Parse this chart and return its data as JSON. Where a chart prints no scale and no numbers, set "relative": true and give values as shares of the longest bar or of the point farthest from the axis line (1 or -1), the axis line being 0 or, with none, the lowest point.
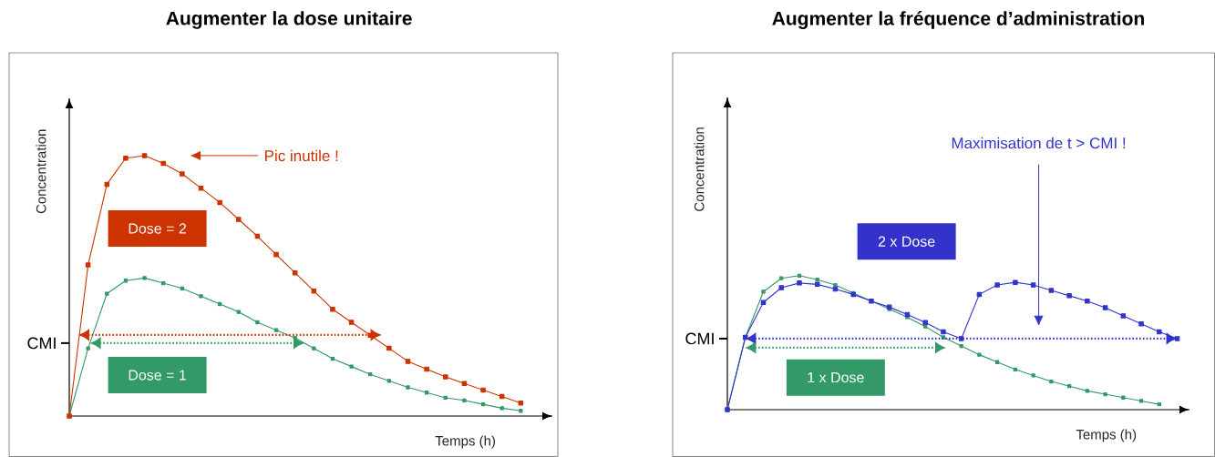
{
  "chart_data": [
    {
      "type": "line",
      "title": "Augmenter la dose unitaire",
      "xlabel": "Temps (h)",
      "ylabel": "Concentration",
      "relative": true,
      "marker": "square",
      "legend": false,
      "categories": [
        null,
        null,
        null,
        null,
        null,
        null,
        null,
        null,
        null,
        null,
        null,
        null,
        null,
        null,
        null,
        null,
        null,
        null,
        null,
        null,
        null,
        null,
        null,
        null,
        null
      ],
      "series": [
        {
          "name": "Dose = 2",
          "color": "#cc3300",
          "values": [
            0,
            0.58,
            0.89,
            0.99,
            1.0,
            0.97,
            0.93,
            0.875,
            0.82,
            0.755,
            0.69,
            0.62,
            0.55,
            0.48,
            0.41,
            0.36,
            0.31,
            0.26,
            0.21,
            0.18,
            0.15,
            0.125,
            0.1,
            0.075,
            0.05
          ]
        },
        {
          "name": "Dose = 1",
          "color": "#339966",
          "values": [
            0,
            0.26,
            0.47,
            0.52,
            0.53,
            0.51,
            0.49,
            0.46,
            0.43,
            0.4,
            0.36,
            0.33,
            0.3,
            0.26,
            0.22,
            0.19,
            0.16,
            0.135,
            0.11,
            0.09,
            0.07,
            0.06,
            0.045,
            0.03,
            0.02
          ]
        }
      ],
      "ref_lines": [
        {
          "axis": "y",
          "value": 0.28,
          "label": "CMI"
        }
      ],
      "annotations": [
        "Pic inutile !"
      ]
    },
    {
      "type": "line",
      "title": "Augmenter la fréquence d’administration",
      "xlabel": "Temps (h)",
      "ylabel": "Concentration",
      "relative": true,
      "marker": "square",
      "legend": false,
      "categories": [
        null,
        null,
        null,
        null,
        null,
        null,
        null,
        null,
        null,
        null,
        null,
        null,
        null,
        null,
        null,
        null,
        null,
        null,
        null,
        null,
        null,
        null,
        null,
        null,
        null,
        null
      ],
      "series": [
        {
          "name": "2 x Dose",
          "color": "#3333cc",
          "values": [
            0,
            0.54,
            0.8,
            0.91,
            0.945,
            0.935,
            0.9,
            0.86,
            0.81,
            0.765,
            0.71,
            0.65,
            0.58,
            0.53,
            0.86,
            0.93,
            0.95,
            0.93,
            0.89,
            0.85,
            0.81,
            0.76,
            0.7,
            0.64,
            0.58,
            0.53
          ]
        },
        {
          "name": "1 x Dose",
          "color": "#339966",
          "values": [
            0,
            0.54,
            0.88,
            0.98,
            1.0,
            0.97,
            0.93,
            0.87,
            0.81,
            0.75,
            0.69,
            0.62,
            0.54,
            0.475,
            0.41,
            0.355,
            0.3,
            0.255,
            0.21,
            0.175,
            0.14,
            0.115,
            0.09,
            0.065,
            0.04,
            null
          ]
        }
      ],
      "ref_lines": [
        {
          "axis": "y",
          "value": 0.53,
          "label": "CMI"
        }
      ],
      "annotations": [
        "Maximisation de t > CMI !"
      ]
    }
  ]
}
